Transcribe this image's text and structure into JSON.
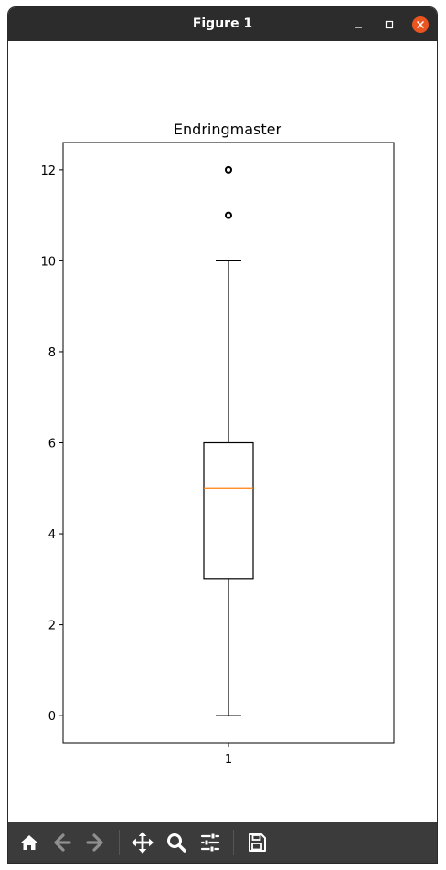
{
  "window": {
    "title": "Figure 1"
  },
  "chart_data": {
    "type": "boxplot",
    "title": "Endringmaster",
    "categories": [
      "1"
    ],
    "ylim": [
      -0.6,
      12.6
    ],
    "yticks": [
      0,
      2,
      4,
      6,
      8,
      10,
      12
    ],
    "boxes": [
      {
        "label": "1",
        "whisker_low": 0,
        "q1": 3,
        "median": 5,
        "q3": 6,
        "whisker_high": 10,
        "outliers": [
          11,
          12
        ]
      }
    ],
    "colors": {
      "median": "#ff7f0e",
      "box": "#000000"
    }
  },
  "toolbar": {
    "buttons": [
      "home-icon",
      "back-icon",
      "forward-icon",
      "pan-icon",
      "zoom-icon",
      "configure-icon",
      "save-icon"
    ]
  }
}
